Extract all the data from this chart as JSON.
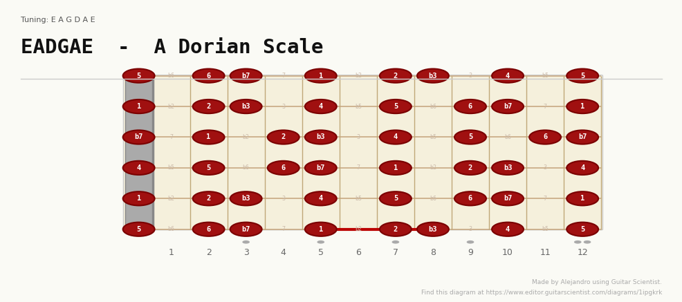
{
  "title": "EADGAE  -  A Dorian Scale",
  "tuning_label": "Tuning: E A G D A E",
  "subtitle_url": "Find this diagram at https://www.editor.guitarscientist.com/diagrams/1ipgkrk",
  "credit": "Made by Alejandro using Guitar Scientist.",
  "bg_color": "#FAFAF5",
  "fretboard_bg": "#F5F0DC",
  "nut_color": "#AAAAAA",
  "string_color": "#C8A882",
  "fret_color": "#C0A878",
  "dot_color_active": "#A01010",
  "dot_border": "#7A0000",
  "text_color_active": "#FFFFFF",
  "text_color_inactive": "#CCBBAA",
  "num_strings": 6,
  "num_frets": 12,
  "active_notes_scale": [
    "1",
    "2",
    "b3",
    "4",
    "5",
    "6",
    "b7"
  ],
  "highlight_line_frets": [
    5,
    7,
    8
  ],
  "highlight_line_string": 5,
  "fret_marker_dots": [
    3,
    5,
    7,
    9,
    12
  ],
  "notes": {
    "string0_fret0": "5",
    "string0_fret1": "b6",
    "string0_fret2": "6",
    "string0_fret3": "b7",
    "string0_fret4": "7",
    "string0_fret5": "1",
    "string0_fret6": "b2",
    "string0_fret7": "2",
    "string0_fret8": "b3",
    "string0_fret9": "3",
    "string0_fret10": "4",
    "string0_fret11": "b5",
    "string0_fret12": "5",
    "string1_fret0": "1",
    "string1_fret1": "b2",
    "string1_fret2": "2",
    "string1_fret3": "b3",
    "string1_fret4": "3",
    "string1_fret5": "4",
    "string1_fret6": "b5",
    "string1_fret7": "5",
    "string1_fret8": "b6",
    "string1_fret9": "6",
    "string1_fret10": "b7",
    "string1_fret11": "7",
    "string1_fret12": "1",
    "string2_fret0": "b7",
    "string2_fret1": "7",
    "string2_fret2": "1",
    "string2_fret3": "b2",
    "string2_fret4": "2",
    "string2_fret5": "b3",
    "string2_fret6": "3",
    "string2_fret7": "4",
    "string2_fret8": "b5",
    "string2_fret9": "5",
    "string2_fret10": "b6",
    "string2_fret11": "6",
    "string2_fret12": "b7",
    "string3_fret0": "4",
    "string3_fret1": "b5",
    "string3_fret2": "5",
    "string3_fret3": "b6",
    "string3_fret4": "6",
    "string3_fret5": "b7",
    "string3_fret6": "7",
    "string3_fret7": "1",
    "string3_fret8": "b2",
    "string3_fret9": "2",
    "string3_fret10": "b3",
    "string3_fret11": "3",
    "string3_fret12": "4",
    "string4_fret0": "1",
    "string4_fret1": "b2",
    "string4_fret2": "2",
    "string4_fret3": "b3",
    "string4_fret4": "3",
    "string4_fret5": "4",
    "string4_fret6": "b5",
    "string4_fret7": "5",
    "string4_fret8": "b6",
    "string4_fret9": "6",
    "string4_fret10": "b7",
    "string4_fret11": "7",
    "string4_fret12": "1",
    "string5_fret0": "5",
    "string5_fret1": "b6",
    "string5_fret2": "6",
    "string5_fret3": "b7",
    "string5_fret4": "7",
    "string5_fret5": "1",
    "string5_fret6": "b2",
    "string5_fret7": "2",
    "string5_fret8": "b3",
    "string5_fret9": "3",
    "string5_fret10": "4",
    "string5_fret11": "b5",
    "string5_fret12": "5"
  }
}
